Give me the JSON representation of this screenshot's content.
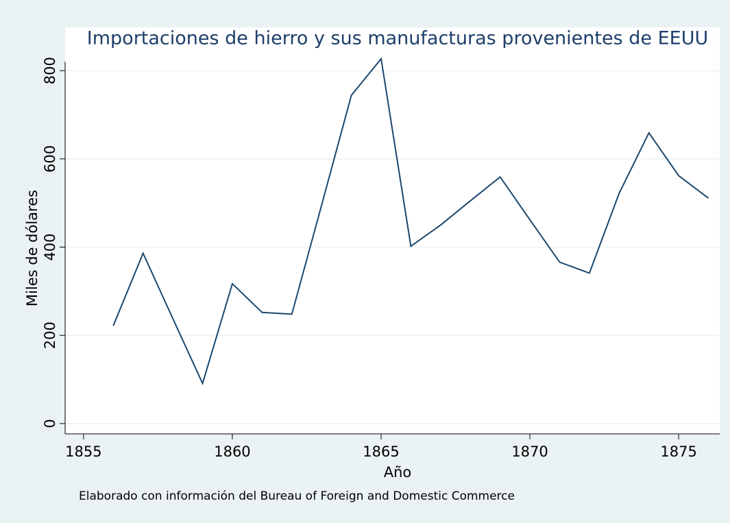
{
  "chart_data": {
    "type": "line",
    "title": "Importaciones de hierro y sus manufacturas provenientes de EEUU",
    "x_label": "Año",
    "y_label": "Miles de dólares",
    "note": "Elaborado con información del Bureau of Foreign and Domestic Commerce",
    "x": [
      1856,
      1857,
      1858,
      1859,
      1860,
      1861,
      1862,
      1863,
      1864,
      1865,
      1866,
      1867,
      1868,
      1869,
      1870,
      1871,
      1872,
      1873,
      1874,
      1875,
      1876
    ],
    "series": [
      {
        "name": "Importaciones",
        "color": "#1a476f",
        "values": [
          222,
          386,
          238,
          91,
          317,
          252,
          248,
          495,
          744,
          827,
          402,
          450,
          505,
          559,
          462,
          366,
          341,
          522,
          659,
          562,
          511
        ]
      }
    ],
    "xlim": [
      1854.38,
      1876.38
    ],
    "xticks": [
      1855,
      1860,
      1865,
      1870,
      1875
    ],
    "ylim": [
      -23.4,
      898
    ],
    "yticks": [
      0,
      200,
      400,
      600,
      800
    ],
    "grid": true
  }
}
